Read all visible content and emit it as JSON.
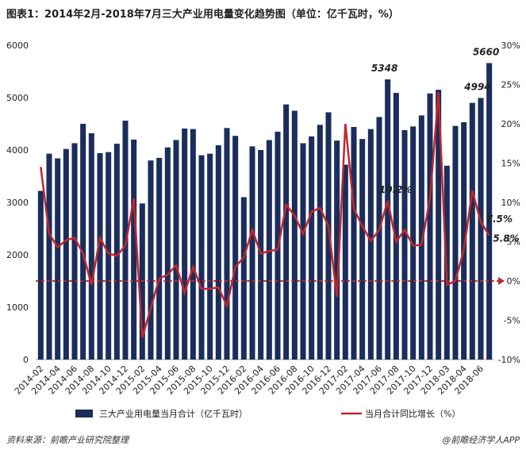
{
  "chart_data": {
    "type": "bar-line",
    "title": "图表1：2014年2月-2018年7月三大产业用电量变化趋势图（单位：亿千瓦时，%）",
    "source": "资料来源：前瞻产业研究院整理",
    "credit": "@前瞻经济学人APP",
    "categories": [
      "2014-02",
      null,
      "2014-04",
      null,
      "2014-06",
      null,
      "2014-08",
      null,
      "2014-10",
      null,
      "2014-12",
      null,
      "2015-02",
      null,
      "2015-04",
      null,
      "2015-06",
      null,
      "2015-08",
      null,
      "2015-10",
      null,
      "2015-12",
      null,
      "2016-02",
      null,
      "2016-04",
      null,
      "2016-06",
      null,
      "2016-08",
      null,
      "2016-10",
      null,
      "2016-12",
      null,
      "2017-02",
      null,
      "2017-04",
      null,
      "2017-06",
      null,
      "2017-08",
      null,
      "2017-10",
      null,
      "2017-12",
      null,
      "2018-03",
      null,
      "2018-04",
      null,
      "2018-06",
      null
    ],
    "series": [
      {
        "name": "三大产业用电量当月合计（亿千瓦时）",
        "type": "bar",
        "color": "#1b2d5c",
        "values": [
          3220,
          3930,
          3840,
          4020,
          4130,
          4500,
          4320,
          3940,
          3960,
          4120,
          4560,
          4200,
          2980,
          3800,
          3850,
          4050,
          4190,
          4410,
          4400,
          3900,
          3930,
          4090,
          4420,
          4270,
          3100,
          4070,
          4000,
          4190,
          4350,
          4870,
          4750,
          4130,
          4260,
          4480,
          4720,
          4180,
          3720,
          4440,
          4210,
          4400,
          4630,
          5348,
          5090,
          4380,
          4450,
          4660,
          5080,
          5150,
          3700,
          4460,
          4530,
          4900,
          4994,
          5660
        ],
        "labeled": [
          41,
          52,
          53
        ]
      },
      {
        "name": "当月合计同比增长（%）",
        "type": "line",
        "axis": "y2",
        "color": "#c1272d",
        "values": [
          14.5,
          6,
          4.3,
          5.2,
          5.5,
          3.5,
          -0.5,
          5.5,
          3.5,
          3.2,
          4.5,
          10.5,
          -7.2,
          -3.5,
          0.3,
          0.8,
          2,
          -1.5,
          1.8,
          -1,
          -1,
          -0.8,
          -3.2,
          1.8,
          3,
          6.5,
          3.5,
          3.8,
          4,
          9.7,
          8.3,
          6,
          8.8,
          9.3,
          7,
          -2,
          20,
          9.2,
          7,
          5.1,
          6.5,
          10.2,
          5,
          6.5,
          4.5,
          4.6,
          10.5,
          24,
          -0.5,
          0,
          4,
          11.5,
          7.5,
          5.8
        ],
        "value_labels": [
          null,
          null,
          null,
          null,
          null,
          null,
          null,
          null,
          null,
          null,
          null,
          null,
          null,
          null,
          null,
          null,
          null,
          null,
          null,
          null,
          null,
          null,
          null,
          null,
          null,
          null,
          null,
          null,
          null,
          null,
          null,
          null,
          null,
          null,
          null,
          null,
          null,
          null,
          null,
          null,
          null,
          "10.2%",
          null,
          null,
          null,
          null,
          null,
          null,
          null,
          null,
          null,
          null,
          "7.5%",
          "5.8%"
        ]
      }
    ],
    "ylim": [
      0,
      6000
    ],
    "yticks": [
      0,
      1000,
      2000,
      3000,
      4000,
      5000,
      6000
    ],
    "y2lim": [
      -10,
      30
    ],
    "y2ticks": [
      {
        "value": -10,
        "label": "-10%"
      },
      {
        "value": -5,
        "label": "-5%"
      },
      {
        "value": 0,
        "label": "0%"
      },
      {
        "value": 5,
        "label": "5%"
      },
      {
        "value": 10,
        "label": "10%"
      },
      {
        "value": 15,
        "label": "15%"
      },
      {
        "value": 20,
        "label": "20%"
      },
      {
        "value": 25,
        "label": "25%"
      },
      {
        "value": 30,
        "label": "30%"
      }
    ],
    "legend": "bottom"
  }
}
